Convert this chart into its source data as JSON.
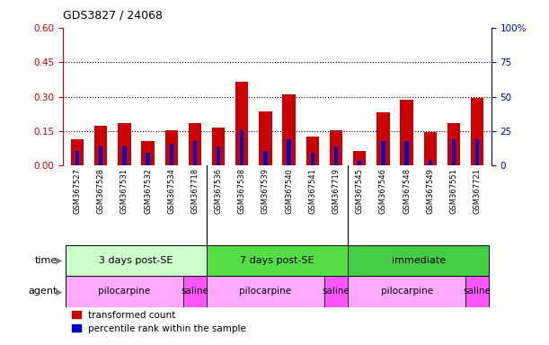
{
  "title": "GDS3827 / 24068",
  "samples": [
    "GSM367527",
    "GSM367528",
    "GSM367531",
    "GSM367532",
    "GSM367534",
    "GSM367718",
    "GSM367536",
    "GSM367538",
    "GSM367539",
    "GSM367540",
    "GSM367541",
    "GSM367719",
    "GSM367545",
    "GSM367546",
    "GSM367548",
    "GSM367549",
    "GSM367551",
    "GSM367721"
  ],
  "transformed_count": [
    0.115,
    0.175,
    0.185,
    0.105,
    0.155,
    0.185,
    0.165,
    0.365,
    0.235,
    0.31,
    0.125,
    0.155,
    0.065,
    0.23,
    0.285,
    0.145,
    0.185,
    0.295
  ],
  "percentile_rank": [
    0.065,
    0.085,
    0.085,
    0.055,
    0.095,
    0.105,
    0.085,
    0.155,
    0.065,
    0.115,
    0.055,
    0.085,
    0.025,
    0.105,
    0.105,
    0.025,
    0.115,
    0.115
  ],
  "ylim_left": [
    0,
    0.6
  ],
  "ylim_right": [
    0,
    100
  ],
  "yticks_left": [
    0,
    0.15,
    0.3,
    0.45,
    0.6
  ],
  "yticks_right": [
    0,
    25,
    50,
    75,
    100
  ],
  "bar_color_red": "#cc0000",
  "bar_color_blue": "#0000cc",
  "dotted_line_values": [
    0.15,
    0.3,
    0.45
  ],
  "time_groups": [
    {
      "label": "3 days post-SE",
      "start": 0,
      "end": 5,
      "color": "#ccffcc"
    },
    {
      "label": "7 days post-SE",
      "start": 6,
      "end": 11,
      "color": "#55dd44"
    },
    {
      "label": "immediate",
      "start": 12,
      "end": 17,
      "color": "#44cc44"
    }
  ],
  "agent_groups": [
    {
      "label": "pilocarpine",
      "start": 0,
      "end": 4,
      "color": "#ffaaff"
    },
    {
      "label": "saline",
      "start": 5,
      "end": 5,
      "color": "#ff55ff"
    },
    {
      "label": "pilocarpine",
      "start": 6,
      "end": 10,
      "color": "#ffaaff"
    },
    {
      "label": "saline",
      "start": 11,
      "end": 11,
      "color": "#ff55ff"
    },
    {
      "label": "pilocarpine",
      "start": 12,
      "end": 16,
      "color": "#ffaaff"
    },
    {
      "label": "saline",
      "start": 17,
      "end": 17,
      "color": "#ff55ff"
    }
  ],
  "legend_labels": [
    "transformed count",
    "percentile rank within the sample"
  ],
  "bg_color": "#d0d0d0",
  "group_boundaries": [
    5.5,
    11.5
  ]
}
